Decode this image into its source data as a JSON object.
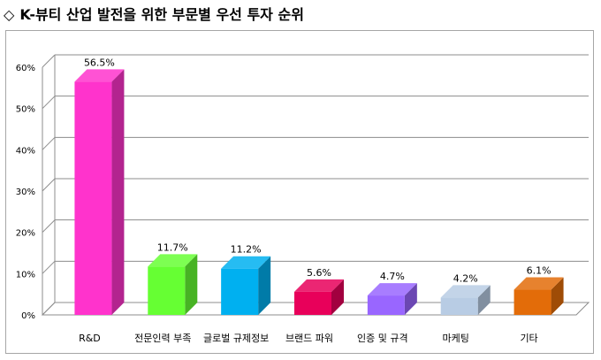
{
  "title": {
    "symbol": "◇",
    "text": "K-뷰티 산업 발전을 위한 부문별 우선 투자 순위"
  },
  "chart_data": {
    "type": "bar",
    "categories": [
      "R&D",
      "전문인력 부족",
      "글로벌 규제정보",
      "브랜드 파워",
      "인증 및 규격",
      "마케팅",
      "기타"
    ],
    "values": [
      56.5,
      11.7,
      11.2,
      5.6,
      4.7,
      4.2,
      6.1
    ],
    "data_labels": [
      "56.5%",
      "11.7%",
      "11.2%",
      "5.6%",
      "4.7%",
      "4.2%",
      "6.1%"
    ],
    "y_ticks": [
      "0%",
      "10%",
      "20%",
      "30%",
      "40%",
      "50%",
      "60%"
    ],
    "ylim": [
      0,
      60
    ],
    "colors": [
      "#ff33cc",
      "#66ff33",
      "#00b0f0",
      "#e8005a",
      "#9966ff",
      "#b8cce4",
      "#e36c09"
    ],
    "grid": true,
    "legend": "none",
    "style": "3d"
  }
}
